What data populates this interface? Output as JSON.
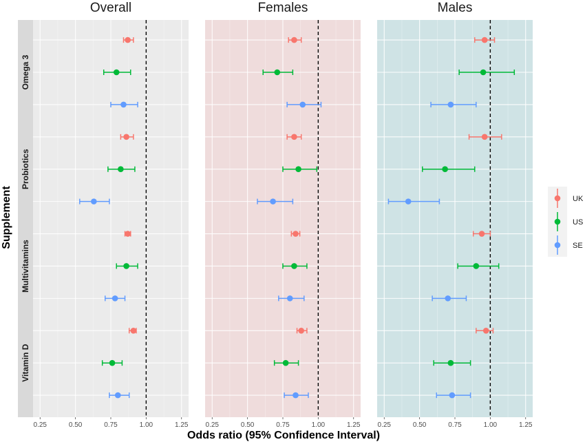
{
  "chart_data": {
    "type": "forest",
    "xlabel": "Odds ratio (95% Confidence Interval)",
    "ylabel": "Supplement",
    "xlim": [
      0.2,
      1.3
    ],
    "xticks": [
      0.25,
      0.5,
      0.75,
      1.0,
      1.25
    ],
    "xtick_labels": [
      "0.25",
      "0.50",
      "0.75",
      "1.00",
      "1.25"
    ],
    "reference_line": 1.0,
    "panels": [
      {
        "name": "Overall",
        "background": "#ebebeb"
      },
      {
        "name": "Females",
        "background": "#efdcdc"
      },
      {
        "name": "Males",
        "background": "#cfe3e5"
      }
    ],
    "supplements": [
      "Omega 3",
      "Probiotics",
      "Multivitamins",
      "Vitamin D"
    ],
    "cohorts": [
      {
        "name": "UK",
        "color": "#f8766d"
      },
      {
        "name": "US",
        "color": "#00ba38"
      },
      {
        "name": "SE",
        "color": "#619cff"
      }
    ],
    "estimates": {
      "Overall": {
        "Omega 3": {
          "UK": [
            0.87,
            0.84,
            0.91
          ],
          "US": [
            0.79,
            0.7,
            0.89
          ],
          "SE": [
            0.84,
            0.75,
            0.94
          ]
        },
        "Probiotics": {
          "UK": [
            0.86,
            0.82,
            0.91
          ],
          "US": [
            0.82,
            0.73,
            0.92
          ],
          "SE": [
            0.63,
            0.53,
            0.74
          ]
        },
        "Multivitamins": {
          "UK": [
            0.87,
            0.85,
            0.89
          ],
          "US": [
            0.86,
            0.79,
            0.94
          ],
          "SE": [
            0.78,
            0.71,
            0.85
          ]
        },
        "Vitamin D": {
          "UK": [
            0.91,
            0.88,
            0.93
          ],
          "US": [
            0.76,
            0.69,
            0.83
          ],
          "SE": [
            0.8,
            0.74,
            0.88
          ]
        }
      },
      "Females": {
        "Omega 3": {
          "UK": [
            0.83,
            0.79,
            0.88
          ],
          "US": [
            0.71,
            0.61,
            0.82
          ],
          "SE": [
            0.89,
            0.78,
            1.02
          ]
        },
        "Probiotics": {
          "UK": [
            0.83,
            0.78,
            0.88
          ],
          "US": [
            0.86,
            0.75,
            0.99
          ],
          "SE": [
            0.68,
            0.57,
            0.82
          ]
        },
        "Multivitamins": {
          "UK": [
            0.84,
            0.81,
            0.87
          ],
          "US": [
            0.83,
            0.75,
            0.92
          ],
          "SE": [
            0.8,
            0.72,
            0.9
          ]
        },
        "Vitamin D": {
          "UK": [
            0.88,
            0.85,
            0.92
          ],
          "US": [
            0.77,
            0.69,
            0.86
          ],
          "SE": [
            0.84,
            0.76,
            0.93
          ]
        }
      },
      "Males": {
        "Omega 3": {
          "UK": [
            0.96,
            0.89,
            1.03
          ],
          "US": [
            0.95,
            0.78,
            1.17
          ],
          "SE": [
            0.72,
            0.58,
            0.9
          ]
        },
        "Probiotics": {
          "UK": [
            0.96,
            0.85,
            1.08
          ],
          "US": [
            0.68,
            0.52,
            0.89
          ],
          "SE": [
            0.42,
            0.28,
            0.64
          ]
        },
        "Multivitamins": {
          "UK": [
            0.94,
            0.88,
            1.0
          ],
          "US": [
            0.9,
            0.77,
            1.06
          ],
          "SE": [
            0.7,
            0.59,
            0.83
          ]
        },
        "Vitamin D": {
          "UK": [
            0.97,
            0.9,
            1.02
          ],
          "US": [
            0.72,
            0.6,
            0.86
          ],
          "SE": [
            0.73,
            0.62,
            0.86
          ]
        }
      }
    },
    "legend": {
      "position": "right",
      "labels": [
        "UK",
        "US",
        "SE"
      ]
    }
  }
}
